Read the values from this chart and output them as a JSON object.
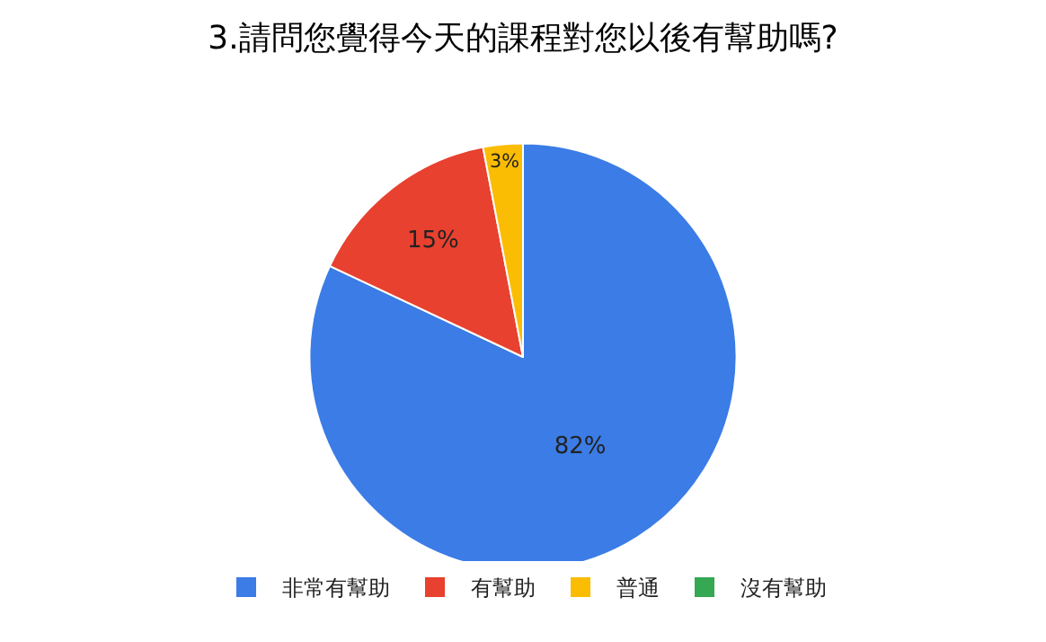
{
  "chart_data": {
    "type": "pie",
    "title": "3.請問您覺得今天的課程對您以後有幫助嗎?",
    "categories": [
      "非常有幫助",
      "有幫助",
      "普通",
      "沒有幫助"
    ],
    "values": [
      82,
      15,
      3,
      0
    ],
    "value_labels": [
      "82%",
      "15%",
      "3%",
      null
    ],
    "colors": [
      "#3b7ce6",
      "#e8412f",
      "#fbbc04",
      "#34a853"
    ],
    "legend": "bottom"
  }
}
